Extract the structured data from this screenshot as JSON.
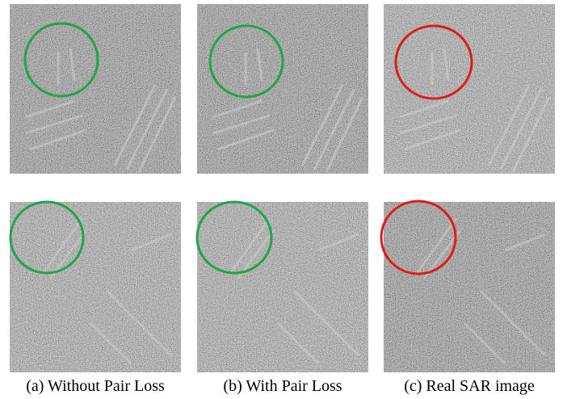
{
  "captions": [
    "(a) Without Pair Loss",
    "(b) With Pair Loss",
    "(c) Real SAR image"
  ]
}
